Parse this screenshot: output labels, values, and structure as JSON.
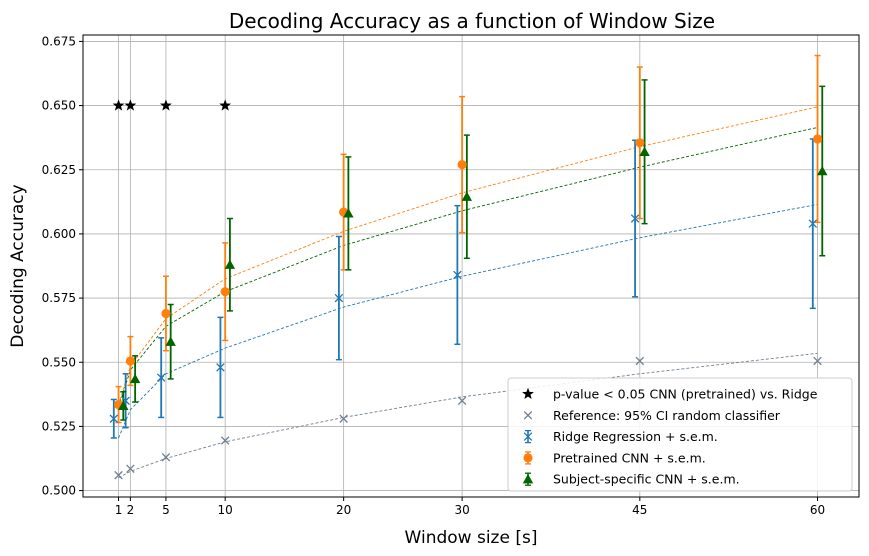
{
  "chart_data": {
    "type": "scatter",
    "title": "Decoding Accuracy as a function of Window Size",
    "xlabel": "Window size [s]",
    "ylabel": "Decoding Accuracy",
    "xlim": [
      -2.0,
      63.5
    ],
    "ylim": [
      0.4975,
      0.6775
    ],
    "x_ticks": [
      1,
      2,
      5,
      10,
      20,
      30,
      45,
      60
    ],
    "x_tick_labels": [
      "1",
      "2",
      "5",
      "10",
      "20",
      "30",
      "45",
      "60"
    ],
    "y_ticks": [
      0.5,
      0.525,
      0.55,
      0.575,
      0.6,
      0.625,
      0.65,
      0.675
    ],
    "y_tick_labels": [
      "0.500",
      "0.525",
      "0.550",
      "0.575",
      "0.600",
      "0.625",
      "0.650",
      "0.675"
    ],
    "grid": true,
    "legend_position": "lower right",
    "colors": {
      "ridge": "#1f77b4",
      "pretrained": "#ff7f0e",
      "subject": "#006400",
      "reference": "#708090",
      "pvalue": "#000000"
    },
    "series": [
      {
        "name": "Ridge Regression + s.e.m.",
        "key": "ridge",
        "marker": "x",
        "x": [
          1,
          2,
          5,
          10,
          20,
          30,
          45,
          60
        ],
        "x_offset_s": -0.4,
        "y": [
          0.528,
          0.535,
          0.544,
          0.548,
          0.575,
          0.584,
          0.606,
          0.604
        ],
        "err": [
          0.0075,
          0.0105,
          0.0155,
          0.0195,
          0.024,
          0.027,
          0.0305,
          0.033
        ],
        "fit": [
          0.5205,
          0.5315,
          0.5455,
          0.5555,
          0.5715,
          0.5835,
          0.5985,
          0.6115
        ]
      },
      {
        "name": "Pretrained CNN + s.e.m.",
        "key": "pretrained",
        "marker": "o",
        "x": [
          1,
          2,
          5,
          10,
          20,
          30,
          45,
          60
        ],
        "x_offset_s": 0,
        "y": [
          0.5335,
          0.5505,
          0.569,
          0.5775,
          0.6085,
          0.627,
          0.6355,
          0.637
        ],
        "err": [
          0.007,
          0.0095,
          0.0145,
          0.019,
          0.0225,
          0.0265,
          0.0295,
          0.0325
        ],
        "fit": [
          0.5335,
          0.5485,
          0.567,
          0.5825,
          0.601,
          0.616,
          0.634,
          0.6495
        ]
      },
      {
        "name": "Subject-specific CNN + s.e.m.",
        "key": "subject",
        "marker": "^",
        "x": [
          1,
          2,
          5,
          10,
          20,
          30,
          45,
          60
        ],
        "x_offset_s": 0.4,
        "y": [
          0.533,
          0.5435,
          0.558,
          0.588,
          0.608,
          0.6145,
          0.632,
          0.6245
        ],
        "err": [
          0.0055,
          0.009,
          0.0145,
          0.018,
          0.022,
          0.024,
          0.028,
          0.033
        ],
        "fit": [
          0.5325,
          0.547,
          0.564,
          0.5775,
          0.5955,
          0.609,
          0.626,
          0.6415
        ]
      },
      {
        "name": "Reference: 95% CI random classifier",
        "key": "reference",
        "marker": "x",
        "x": [
          1,
          2,
          5,
          10,
          20,
          30,
          45,
          60
        ],
        "y": [
          0.506,
          0.5085,
          0.513,
          0.5195,
          0.528,
          0.535,
          0.5505,
          0.5505
        ],
        "fit": [
          0.505,
          0.5075,
          0.5125,
          0.519,
          0.5285,
          0.5365,
          0.5455,
          0.5535
        ]
      },
      {
        "name": "p-value < 0.05 CNN (pretrained) vs. Ridge",
        "key": "pvalue",
        "marker": "*",
        "x": [
          1,
          2,
          5,
          10
        ],
        "y": [
          0.65,
          0.65,
          0.65,
          0.65
        ]
      }
    ],
    "legend_order": [
      "pvalue",
      "reference",
      "ridge",
      "pretrained",
      "subject"
    ]
  }
}
